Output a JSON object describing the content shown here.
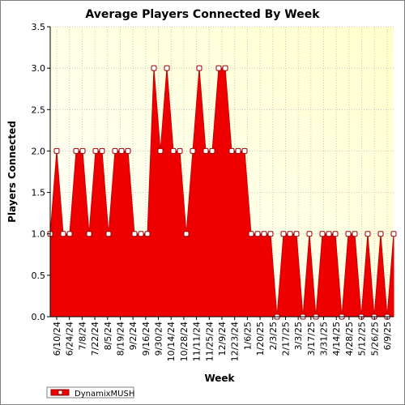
{
  "chart_data": {
    "type": "area",
    "title": "Average Players Connected By Week",
    "xlabel": "Week",
    "ylabel": "Players Connected",
    "ylim": [
      0,
      3.5
    ],
    "yticks": [
      "0.0",
      "0.5",
      "1.0",
      "1.5",
      "2.0",
      "2.5",
      "3.0",
      "3.5"
    ],
    "xtick_labels": [
      "6/10/24",
      "6/24/24",
      "7/8/24",
      "7/22/24",
      "8/5/24",
      "8/19/24",
      "9/2/24",
      "9/16/24",
      "9/30/24",
      "10/14/24",
      "10/28/24",
      "11/11/24",
      "11/25/24",
      "12/9/24",
      "12/23/24",
      "1/6/25",
      "1/20/25",
      "2/3/25",
      "2/17/25",
      "3/3/25",
      "3/17/25",
      "3/31/25",
      "4/14/25",
      "4/28/25",
      "5/12/25",
      "5/26/25",
      "6/9/25"
    ],
    "grid": true,
    "legend_position": "bottom-left",
    "series": [
      {
        "name": "DynamixMUSH",
        "color": "#ee0000",
        "values": [
          1,
          2,
          1,
          1,
          2,
          2,
          1,
          2,
          2,
          1,
          2,
          2,
          2,
          1,
          1,
          1,
          3,
          2,
          3,
          2,
          2,
          1,
          2,
          3,
          2,
          2,
          3,
          3,
          2,
          2,
          2,
          1,
          1,
          1,
          1,
          0,
          1,
          1,
          1,
          0,
          1,
          0,
          1,
          1,
          1,
          0,
          1,
          1,
          0,
          1,
          0,
          1,
          0,
          1
        ]
      }
    ]
  }
}
